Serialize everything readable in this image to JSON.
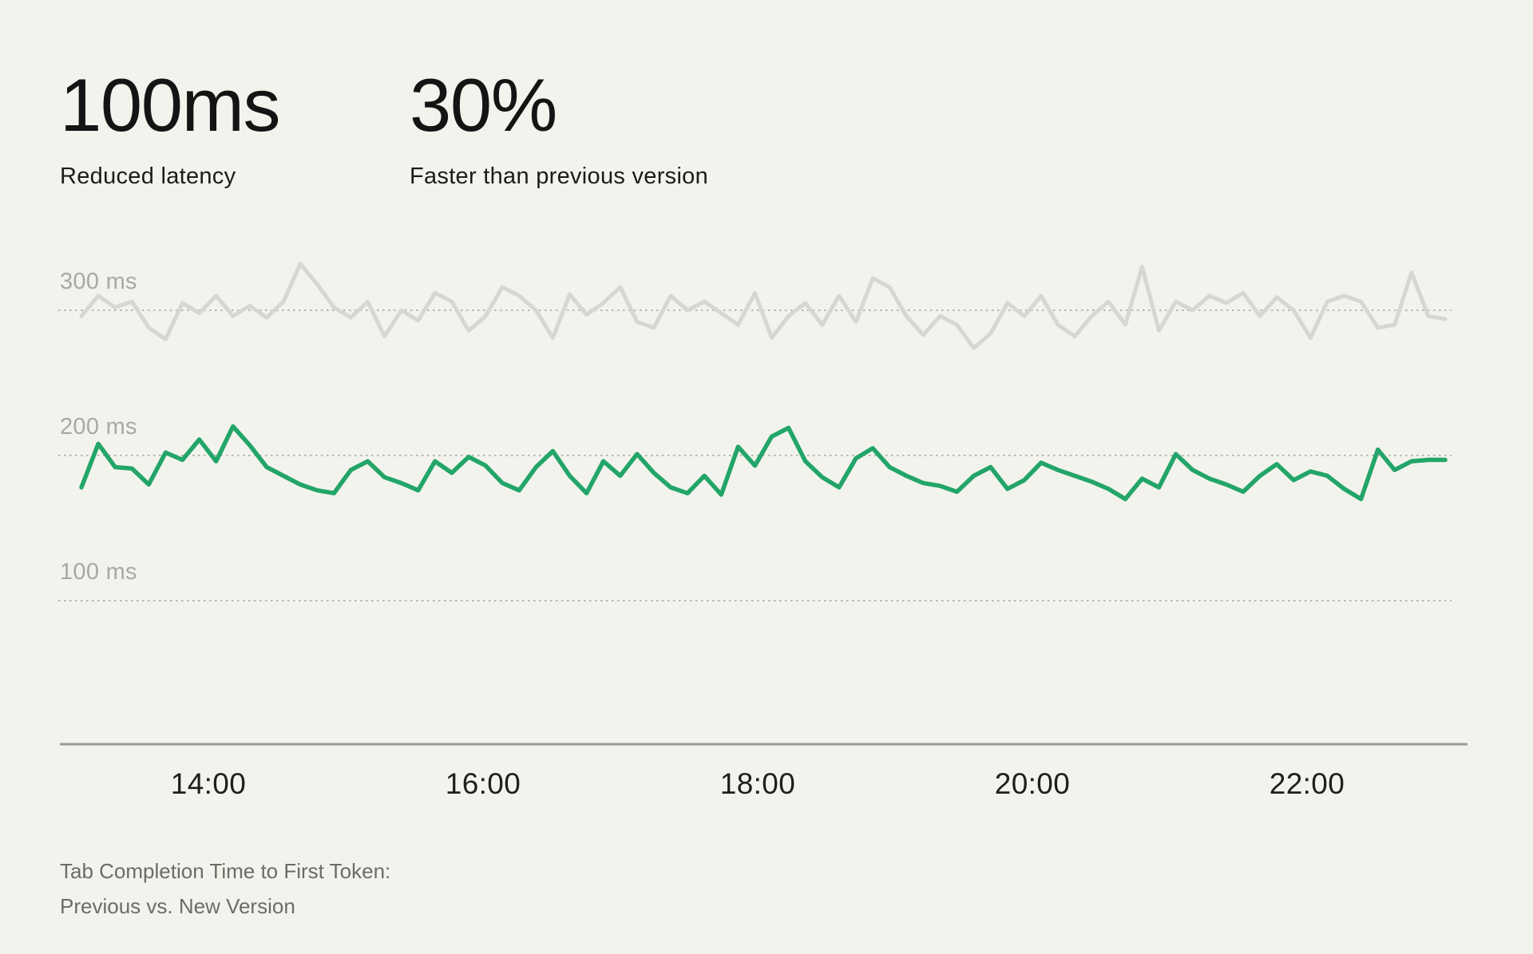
{
  "stats": [
    {
      "value": "100ms",
      "label": "Reduced latency"
    },
    {
      "value": "30%",
      "label": "Faster than previous version"
    }
  ],
  "caption": {
    "line1": "Tab Completion Time to First Token:",
    "line2": "Previous vs. New Version"
  },
  "chart_data": {
    "type": "line",
    "title": "Tab Completion Time to First Token: Previous vs. New Version",
    "unit": "ms",
    "x_start": "13:05",
    "x_end": "23:00",
    "x_ticks": [
      "14:00",
      "16:00",
      "18:00",
      "20:00",
      "22:00"
    ],
    "y_ticks": [
      {
        "value": 300,
        "label": "300 ms"
      },
      {
        "value": 200,
        "label": "200 ms"
      },
      {
        "value": 100,
        "label": "100 ms"
      }
    ],
    "ylim": [
      50,
      360
    ],
    "grid": "dotted-horizontal",
    "legend_position": "none",
    "series": [
      {
        "name": "Previous version",
        "color": "#d7d7d1",
        "values": [
          296,
          310,
          302,
          306,
          288,
          280,
          305,
          298,
          310,
          296,
          303,
          295,
          306,
          332,
          318,
          302,
          295,
          306,
          282,
          300,
          293,
          312,
          306,
          286,
          296,
          316,
          310,
          300,
          281,
          311,
          297,
          305,
          316,
          292,
          288,
          310,
          300,
          306,
          298,
          290,
          312,
          281,
          296,
          305,
          290,
          310,
          292,
          322,
          316,
          296,
          283,
          296,
          290,
          274,
          284,
          305,
          296,
          310,
          290,
          282,
          296,
          306,
          290,
          330,
          286,
          306,
          300,
          310,
          305,
          312,
          296,
          309,
          300,
          281,
          306,
          310,
          306,
          288,
          290,
          326,
          296,
          294
        ]
      },
      {
        "name": "New version",
        "color": "#23a569",
        "values": [
          178,
          208,
          192,
          191,
          180,
          202,
          197,
          211,
          196,
          220,
          207,
          192,
          186,
          180,
          176,
          174,
          190,
          196,
          185,
          181,
          176,
          196,
          188,
          199,
          193,
          181,
          176,
          192,
          203,
          186,
          174,
          196,
          186,
          201,
          188,
          178,
          174,
          186,
          173,
          206,
          193,
          213,
          219,
          196,
          185,
          178,
          198,
          205,
          192,
          186,
          181,
          179,
          175,
          186,
          192,
          177,
          183,
          195,
          190,
          186,
          182,
          177,
          170,
          184,
          178,
          201,
          190,
          184,
          180,
          175,
          186,
          194,
          183,
          189,
          186,
          177,
          170,
          204,
          190,
          196,
          197,
          197
        ]
      }
    ],
    "grid_color": "#b7b7b1",
    "axis_color": "#9a9a94"
  }
}
